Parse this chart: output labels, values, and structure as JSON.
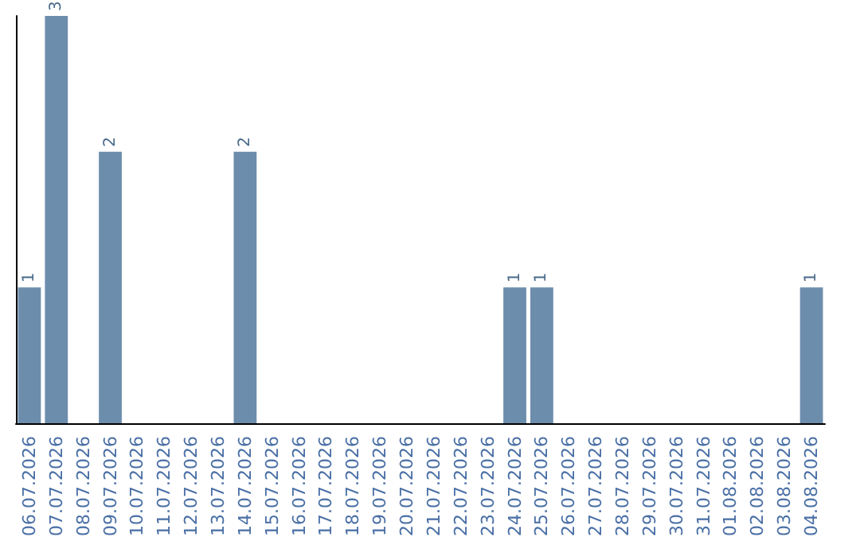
{
  "chart_data": {
    "type": "bar",
    "categories": [
      "06.07.2026",
      "07.07.2026",
      "08.07.2026",
      "09.07.2026",
      "10.07.2026",
      "11.07.2026",
      "12.07.2026",
      "13.07.2026",
      "14.07.2026",
      "15.07.2026",
      "16.07.2026",
      "17.07.2026",
      "18.07.2026",
      "19.07.2026",
      "20.07.2026",
      "21.07.2026",
      "22.07.2026",
      "23.07.2026",
      "24.07.2026",
      "25.07.2026",
      "26.07.2026",
      "27.07.2026",
      "28.07.2026",
      "29.07.2026",
      "30.07.2026",
      "31.07.2026",
      "01.08.2026",
      "02.08.2026",
      "03.08.2026",
      "04.08.2026"
    ],
    "values": [
      1,
      3,
      0,
      2,
      0,
      0,
      0,
      0,
      2,
      0,
      0,
      0,
      0,
      0,
      0,
      0,
      0,
      0,
      1,
      1,
      0,
      0,
      0,
      0,
      0,
      0,
      0,
      0,
      0,
      1
    ],
    "value_labels": [
      "1",
      "3",
      null,
      "2",
      null,
      null,
      null,
      null,
      "2",
      null,
      null,
      null,
      null,
      null,
      null,
      null,
      null,
      null,
      "1",
      "1",
      null,
      null,
      null,
      null,
      null,
      null,
      null,
      null,
      null,
      "1"
    ],
    "color": "#6d8dac",
    "tick_labels": "x",
    "grid": false
  }
}
